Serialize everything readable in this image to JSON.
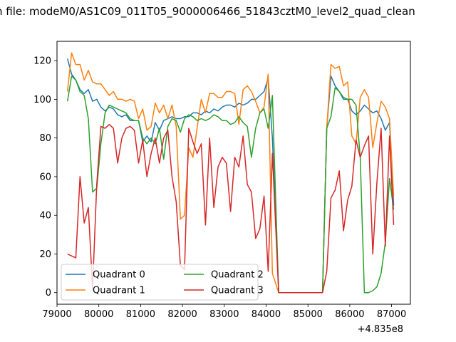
{
  "chart_data": {
    "type": "line",
    "title": "n file: modeM0/AS1C09_011T05_9000006466_51843cztM0_level2_quad_clean",
    "offset_label": "+4.835e8",
    "xlim": [
      79000,
      87450
    ],
    "ylim": [
      -6,
      130
    ],
    "xticks": [
      79000,
      80000,
      81000,
      82000,
      83000,
      84000,
      85000,
      86000,
      87000
    ],
    "yticks": [
      0,
      20,
      40,
      60,
      80,
      100,
      120
    ],
    "legend": {
      "placement": "lower-left",
      "columns": 2
    },
    "grid": false,
    "series": [
      {
        "name": "Quadrant 0",
        "color": "#1f77b4",
        "x": [
          79250,
          79350,
          79450,
          79550,
          79650,
          79750,
          79850,
          79950,
          80050,
          80150,
          80250,
          80350,
          80450,
          80550,
          80650,
          80750,
          80850,
          80950,
          81050,
          81150,
          81250,
          81350,
          81450,
          81550,
          81650,
          81750,
          81850,
          81950,
          82050,
          82150,
          82250,
          82350,
          82450,
          82550,
          82650,
          82750,
          82850,
          82950,
          83050,
          83150,
          83250,
          83350,
          83450,
          83550,
          83650,
          83750,
          83850,
          83950,
          84050,
          84150,
          84300,
          85350,
          85450,
          85550,
          85650,
          85750,
          85850,
          85950,
          86050,
          86150,
          86250,
          86350,
          86450,
          86550,
          86650,
          86750,
          86850,
          86950,
          87050
        ],
        "values": [
          121,
          113,
          110,
          105,
          103,
          105,
          99,
          100,
          96,
          94,
          96,
          95,
          92,
          91,
          92,
          89,
          89,
          89,
          78,
          81,
          78,
          88,
          84,
          89,
          90,
          91,
          90,
          90,
          91,
          91,
          93,
          93,
          92,
          94,
          93,
          95,
          94,
          96,
          97,
          97,
          96,
          98,
          97,
          98,
          100,
          100,
          102,
          104,
          111,
          80,
          0,
          0,
          85,
          112,
          107,
          104,
          100,
          100,
          94,
          92,
          94,
          97,
          95,
          93,
          94,
          90,
          84,
          88,
          45
        ]
      },
      {
        "name": "Quadrant 1",
        "color": "#ff7f0e",
        "x": [
          79250,
          79350,
          79450,
          79550,
          79650,
          79750,
          79850,
          79950,
          80050,
          80150,
          80250,
          80350,
          80450,
          80550,
          80650,
          80750,
          80850,
          80950,
          81050,
          81150,
          81250,
          81350,
          81450,
          81550,
          81650,
          81750,
          81850,
          81950,
          82050,
          82150,
          82250,
          82350,
          82450,
          82550,
          82650,
          82750,
          82850,
          82950,
          83050,
          83150,
          83250,
          83350,
          83450,
          83550,
          83650,
          83750,
          83850,
          83950,
          84050,
          84150,
          84300,
          85350,
          85450,
          85550,
          85650,
          85750,
          85850,
          85950,
          86050,
          86150,
          86250,
          86350,
          86450,
          86550,
          86650,
          86750,
          86850,
          86950,
          87050
        ],
        "values": [
          104,
          124,
          118,
          118,
          110,
          115,
          109,
          108,
          108,
          105,
          102,
          104,
          100,
          100,
          99,
          100,
          99,
          90,
          95,
          84,
          86,
          98,
          93,
          97,
          90,
          97,
          86,
          38,
          40,
          75,
          70,
          85,
          100,
          93,
          103,
          103,
          101,
          101,
          104,
          104,
          103,
          87,
          105,
          107,
          104,
          99,
          93,
          96,
          113,
          10,
          0,
          0,
          85,
          118,
          116,
          117,
          107,
          109,
          81,
          77,
          101,
          105,
          101,
          75,
          88,
          99,
          96,
          90,
          50
        ]
      },
      {
        "name": "Quadrant 2",
        "color": "#2ca02c",
        "x": [
          79250,
          79350,
          79450,
          79550,
          79650,
          79750,
          79850,
          79950,
          80050,
          80150,
          80250,
          80350,
          80450,
          80550,
          80650,
          80750,
          80850,
          80950,
          81050,
          81150,
          81250,
          81350,
          81450,
          81550,
          81650,
          81750,
          81850,
          81950,
          82050,
          82150,
          82250,
          82350,
          82450,
          82550,
          82650,
          82750,
          82850,
          82950,
          83050,
          83150,
          83250,
          83350,
          83450,
          83550,
          83650,
          83750,
          83850,
          83950,
          84050,
          84150,
          84300,
          85350,
          85450,
          85550,
          85650,
          85750,
          85850,
          85950,
          86050,
          86150,
          86250,
          86350,
          86450,
          86550,
          86650,
          86750,
          86850,
          86950,
          87050
        ],
        "values": [
          99,
          112,
          110,
          104,
          102,
          90,
          52,
          54,
          77,
          93,
          97,
          96,
          95,
          94,
          93,
          90,
          89,
          89,
          80,
          77,
          80,
          77,
          85,
          69,
          86,
          90,
          89,
          83,
          90,
          92,
          91,
          89,
          90,
          89,
          90,
          92,
          91,
          89,
          89,
          87,
          88,
          91,
          88,
          86,
          70,
          85,
          93,
          95,
          85,
          102,
          0,
          0,
          85,
          91,
          106,
          104,
          101,
          100,
          100,
          97,
          70,
          0,
          0,
          1,
          3,
          10,
          26,
          59,
          43
        ]
      },
      {
        "name": "Quadrant 3",
        "color": "#d62728",
        "x": [
          79250,
          79350,
          79450,
          79550,
          79650,
          79750,
          79850,
          79950,
          80050,
          80150,
          80250,
          80350,
          80450,
          80550,
          80650,
          80750,
          80850,
          80950,
          81050,
          81150,
          81250,
          81350,
          81450,
          81550,
          81650,
          81750,
          81850,
          81950,
          82050,
          82150,
          82250,
          82350,
          82450,
          82550,
          82650,
          82750,
          82850,
          82950,
          83050,
          83150,
          83250,
          83350,
          83450,
          83550,
          83650,
          83750,
          83850,
          83950,
          84050,
          84150,
          84300,
          85350,
          85450,
          85550,
          85650,
          85750,
          85850,
          85950,
          86050,
          86150,
          86250,
          86350,
          86450,
          86550,
          86650,
          86750,
          86850,
          86950,
          87050
        ],
        "values": [
          20,
          19,
          18,
          60,
          36,
          44,
          2,
          56,
          86,
          85,
          87,
          85,
          67,
          80,
          85,
          86,
          84,
          67,
          79,
          60,
          72,
          80,
          67,
          80,
          84,
          60,
          47,
          14,
          12,
          85,
          78,
          72,
          77,
          35,
          80,
          44,
          65,
          70,
          67,
          42,
          70,
          65,
          81,
          56,
          52,
          28,
          33,
          50,
          11,
          72,
          0,
          0,
          11,
          49,
          53,
          63,
          32,
          48,
          55,
          79,
          70,
          76,
          81,
          20,
          57,
          85,
          24,
          81,
          35
        ]
      }
    ]
  }
}
